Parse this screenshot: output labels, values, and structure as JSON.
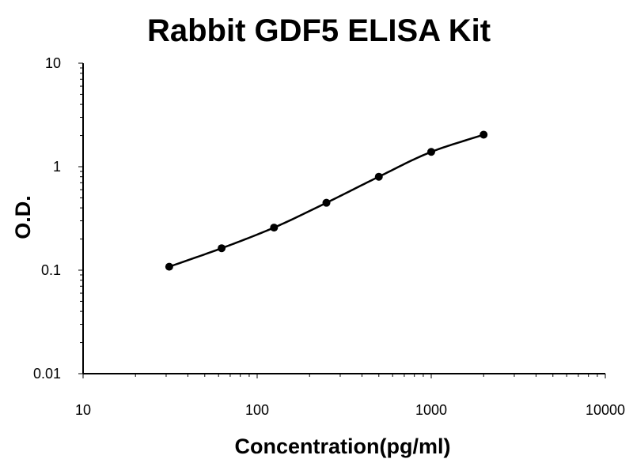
{
  "chart_data": {
    "type": "scatter",
    "title": "Rabbit GDF5 ELISA Kit",
    "xlabel": "Concentration(pg/ml)",
    "ylabel": "O.D.",
    "x_scale": "log",
    "y_scale": "log",
    "xlim": [
      10,
      10000
    ],
    "ylim": [
      0.01,
      10
    ],
    "x_ticks": [
      "10",
      "100",
      "1000",
      "10000"
    ],
    "y_ticks": [
      "0.01",
      "0.1",
      "1",
      "10"
    ],
    "grid": false,
    "legend": "none",
    "series": [
      {
        "x": [
          31.25,
          62.5,
          125,
          250,
          500,
          1000,
          2000
        ],
        "y": [
          0.108,
          0.163,
          0.258,
          0.448,
          0.8,
          1.39,
          2.04
        ],
        "fit_line": true
      }
    ],
    "colors": {
      "marker": "#000000",
      "line": "#000000",
      "axis": "#000000"
    }
  }
}
